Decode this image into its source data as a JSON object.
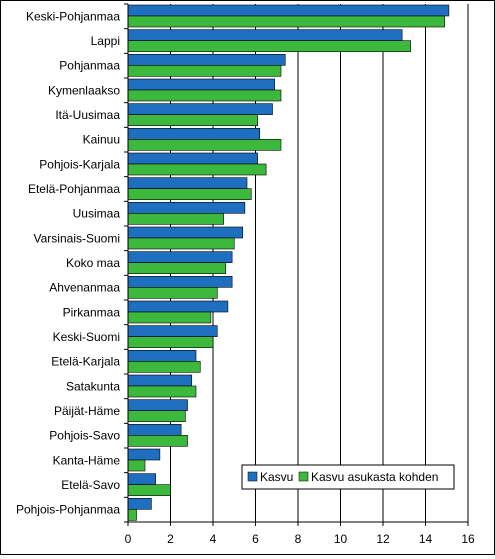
{
  "chart_data": {
    "type": "bar",
    "orientation": "horizontal",
    "title": "",
    "xlabel": "",
    "ylabel": "",
    "xlim": [
      0,
      16
    ],
    "xticks": [
      0,
      2,
      4,
      6,
      8,
      10,
      12,
      14,
      16
    ],
    "grid": "vertical",
    "legend_position": "bottom-right",
    "categories": [
      "Keski-Pohjanmaa",
      "Lappi",
      "Pohjanmaa",
      "Kymenlaakso",
      "Itä-Uusimaa",
      "Kainuu",
      "Pohjois-Karjala",
      "Etelä-Pohjanmaa",
      "Uusimaa",
      "Varsinais-Suomi",
      "Koko maa",
      "Ahvenanmaa",
      "Pirkanmaa",
      "Keski-Suomi",
      "Etelä-Karjala",
      "Satakunta",
      "Päijät-Häme",
      "Pohjois-Savo",
      "Kanta-Häme",
      "Etelä-Savo",
      "Pohjois-Pohjanmaa"
    ],
    "series": [
      {
        "name": "Kasvu",
        "color": "#1f6fc0",
        "values": [
          15.1,
          12.9,
          7.4,
          6.9,
          6.8,
          6.2,
          6.1,
          5.6,
          5.5,
          5.4,
          4.9,
          4.9,
          4.7,
          4.2,
          3.2,
          3.0,
          2.8,
          2.5,
          1.5,
          1.3,
          1.1
        ]
      },
      {
        "name": "Kasvu asukasta kohden",
        "color": "#3cb83c",
        "values": [
          14.9,
          13.3,
          7.2,
          7.2,
          6.1,
          7.2,
          6.5,
          5.8,
          4.5,
          5.0,
          4.6,
          4.2,
          3.9,
          4.0,
          3.4,
          3.2,
          2.7,
          2.8,
          0.8,
          2.0,
          0.4
        ]
      }
    ]
  }
}
